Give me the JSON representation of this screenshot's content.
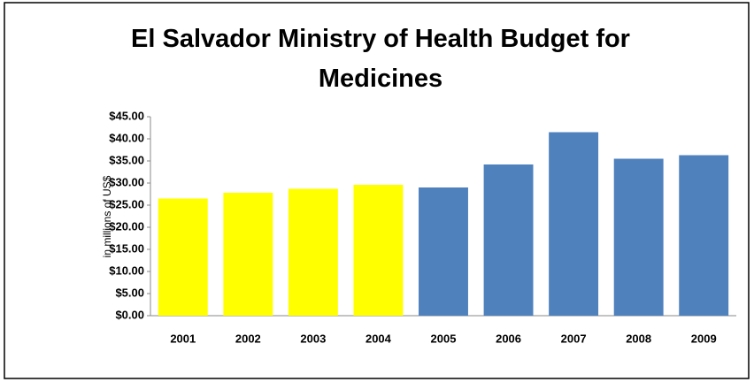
{
  "chart_data": {
    "type": "bar",
    "title": "El Salvador Ministry of Health Budget for Medicines",
    "y_label": "in millions of US$",
    "categories": [
      "2001",
      "2002",
      "2003",
      "2004",
      "2005",
      "2006",
      "2007",
      "2008",
      "2009"
    ],
    "values": [
      26.5,
      27.8,
      28.7,
      29.6,
      29.0,
      34.2,
      41.5,
      35.5,
      36.3
    ],
    "colors": [
      "#ffff00",
      "#ffff00",
      "#ffff00",
      "#ffff00",
      "#4f81bd",
      "#4f81bd",
      "#4f81bd",
      "#4f81bd",
      "#4f81bd"
    ],
    "ylim": [
      0,
      45
    ],
    "yticks": [
      {
        "value": 0,
        "label": "$0.00"
      },
      {
        "value": 5,
        "label": "$5.00"
      },
      {
        "value": 10,
        "label": "$10.00"
      },
      {
        "value": 15,
        "label": "$15.00"
      },
      {
        "value": 20,
        "label": "$20.00"
      },
      {
        "value": 25,
        "label": "$25.00"
      },
      {
        "value": 30,
        "label": "$30.00"
      },
      {
        "value": 35,
        "label": "$35.00"
      },
      {
        "value": 40,
        "label": "$40.00"
      },
      {
        "value": 45,
        "label": "$45.00"
      }
    ],
    "grid": false
  }
}
